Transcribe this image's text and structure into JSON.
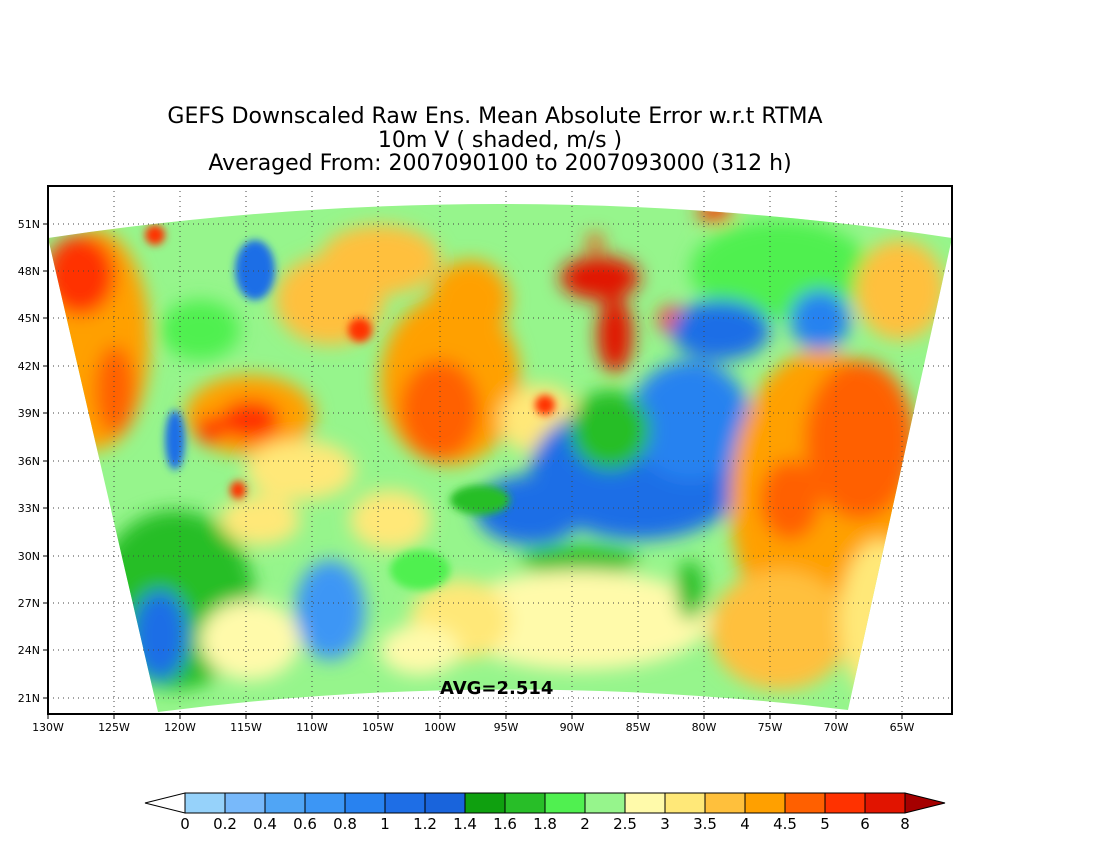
{
  "title": {
    "line1": "GEFS Downscaled Raw Ens. Mean Absolute Error w.r.t RTMA",
    "line2": "10m V ( shaded, m/s )",
    "line3": "Averaged From: 2007090100 to 2007093000 (312 h)"
  },
  "map": {
    "lat_ticks": [
      "51N",
      "48N",
      "45N",
      "42N",
      "39N",
      "36N",
      "33N",
      "30N",
      "27N",
      "24N",
      "21N"
    ],
    "lon_ticks": [
      "130W",
      "125W",
      "120W",
      "115W",
      "110W",
      "105W",
      "100W",
      "95W",
      "90W",
      "85W",
      "80W",
      "75W",
      "70W",
      "65W"
    ],
    "lat_range": [
      19.5,
      53
    ],
    "lon_range": [
      -130,
      -61
    ],
    "grid": "dotted",
    "avg_label": "AVG=2.514",
    "regions": {
      "west_coast_ocean": "high (orange/red)",
      "atlantic_ocean": "high (orange/red)",
      "great_lakes": "red",
      "southeast_us": "low (blue)",
      "gulf_of_mexico": "yellow",
      "eastern_pacific_south": "green/blue"
    }
  },
  "colorbar": {
    "levels": [
      "0",
      "0.2",
      "0.4",
      "0.6",
      "0.8",
      "1",
      "1.2",
      "1.4",
      "1.6",
      "1.8",
      "2",
      "2.5",
      "3",
      "3.5",
      "4",
      "4.5",
      "5",
      "6",
      "8"
    ],
    "colors": [
      "#ffffff",
      "#96d2fa",
      "#78b9fa",
      "#50a5f5",
      "#3c96f5",
      "#2882f0",
      "#1e6ee6",
      "#1964dc",
      "#0fa00f",
      "#28be28",
      "#50f050",
      "#96f58c",
      "#fffaaa",
      "#ffe878",
      "#ffc03c",
      "#ffa000",
      "#ff6000",
      "#ff3200",
      "#e11400",
      "#a50000"
    ]
  }
}
